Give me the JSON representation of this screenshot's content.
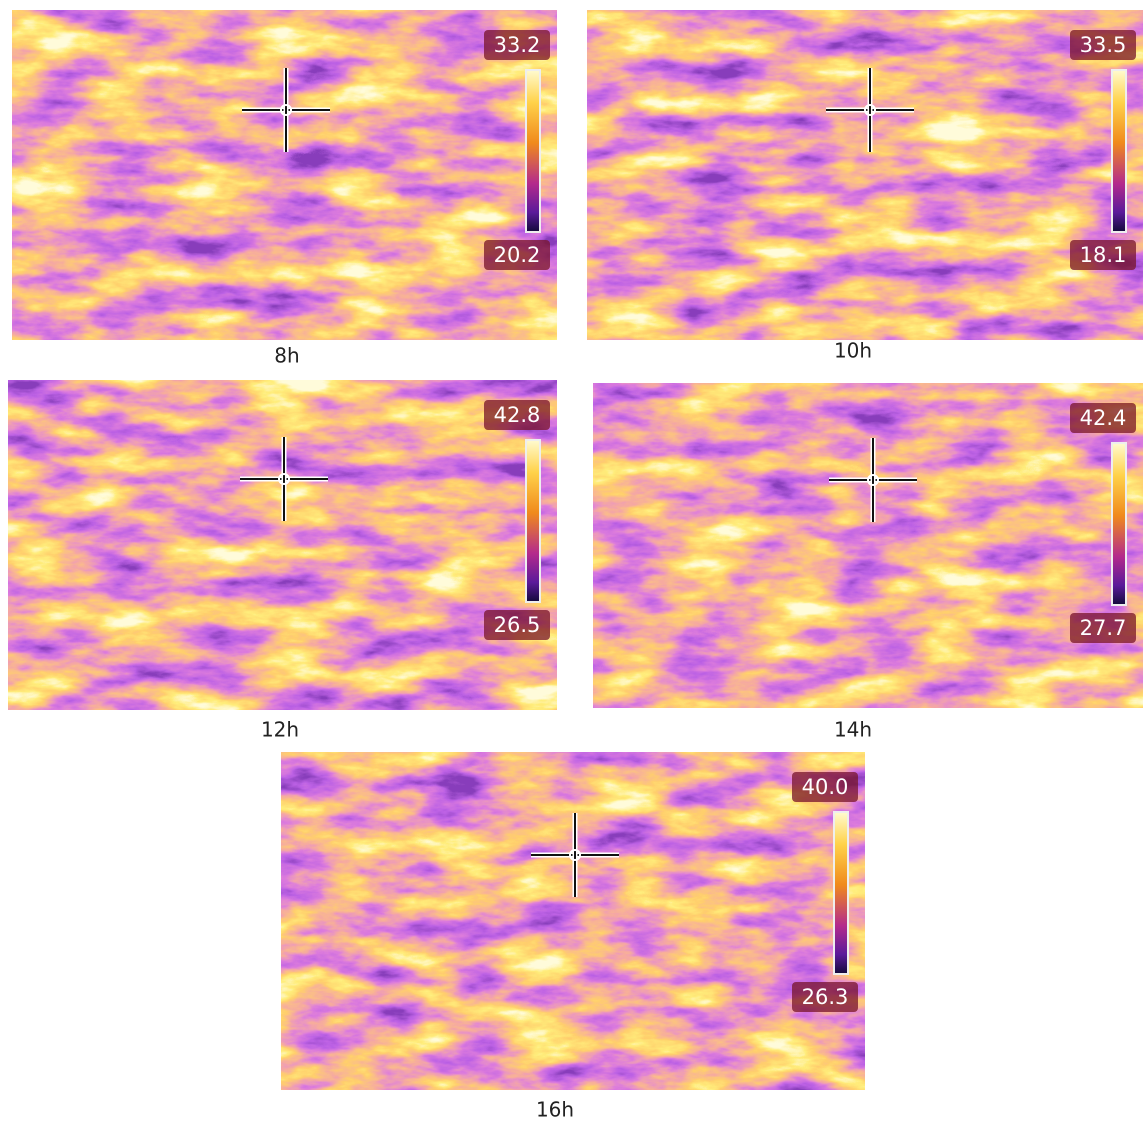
{
  "panels": [
    {
      "label": "8h",
      "max": "33.2",
      "min": "20.2"
    },
    {
      "label": "10h",
      "max": "33.5",
      "min": "18.1"
    },
    {
      "label": "12h",
      "max": "42.8",
      "min": "26.5"
    },
    {
      "label": "14h",
      "max": "42.4",
      "min": "27.7"
    },
    {
      "label": "16h",
      "max": "40.0",
      "min": "26.3"
    }
  ]
}
